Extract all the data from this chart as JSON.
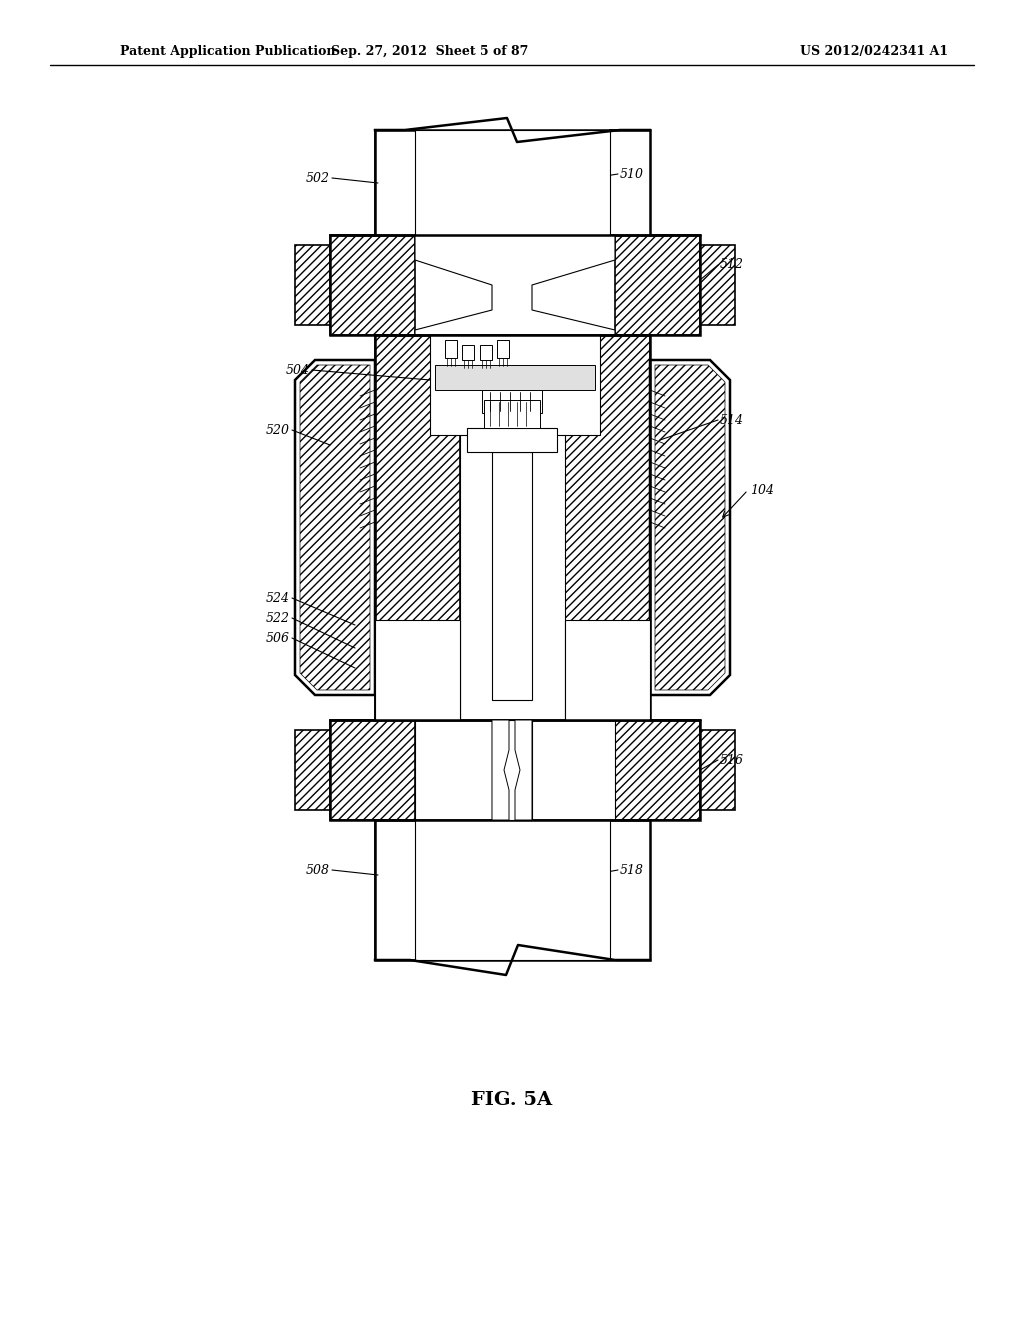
{
  "title_left": "Patent Application Publication",
  "title_mid": "Sep. 27, 2012  Sheet 5 of 87",
  "title_right": "US 2012/0242341 A1",
  "fig_label": "FIG. 5A",
  "bg_color": "#ffffff",
  "line_color": "#000000",
  "text_color": "#000000"
}
